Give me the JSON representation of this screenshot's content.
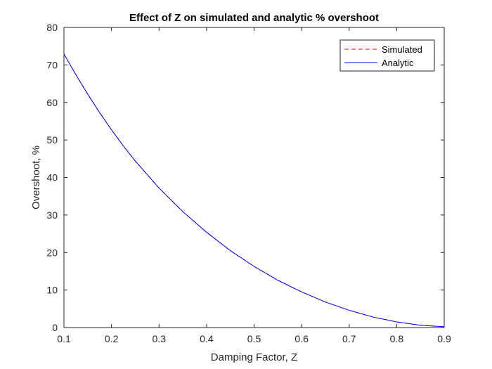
{
  "chart_data": {
    "type": "line",
    "title": "Effect of Z on simulated and analytic % overshoot",
    "xlabel": "Damping Factor, Z",
    "ylabel": "Overshoot, %",
    "xlim": [
      0.1,
      0.9
    ],
    "ylim": [
      0,
      80
    ],
    "xticks": [
      "0.1",
      "0.2",
      "0.3",
      "0.4",
      "0.5",
      "0.6",
      "0.7",
      "0.8",
      "0.9"
    ],
    "yticks": [
      "0",
      "10",
      "20",
      "30",
      "40",
      "50",
      "60",
      "70",
      "80"
    ],
    "grid": false,
    "legend_position": "top-right",
    "x": [
      0.1,
      0.125,
      0.15,
      0.175,
      0.2,
      0.225,
      0.25,
      0.3,
      0.35,
      0.4,
      0.45,
      0.5,
      0.55,
      0.6,
      0.65,
      0.7,
      0.75,
      0.8,
      0.85,
      0.9
    ],
    "series": [
      {
        "name": "Simulated",
        "color": "#ff0000",
        "style": "dashed",
        "values": [
          72.9,
          67.4,
          62.2,
          57.3,
          52.7,
          48.4,
          44.4,
          37.2,
          30.9,
          25.4,
          20.5,
          16.3,
          12.6,
          9.5,
          6.8,
          4.6,
          2.8,
          1.5,
          0.6,
          0.2
        ]
      },
      {
        "name": "Analytic",
        "color": "#0000ff",
        "style": "solid",
        "values": [
          72.9,
          67.4,
          62.2,
          57.3,
          52.7,
          48.4,
          44.4,
          37.2,
          30.9,
          25.4,
          20.5,
          16.3,
          12.6,
          9.5,
          6.8,
          4.6,
          2.8,
          1.5,
          0.6,
          0.2
        ]
      }
    ]
  }
}
